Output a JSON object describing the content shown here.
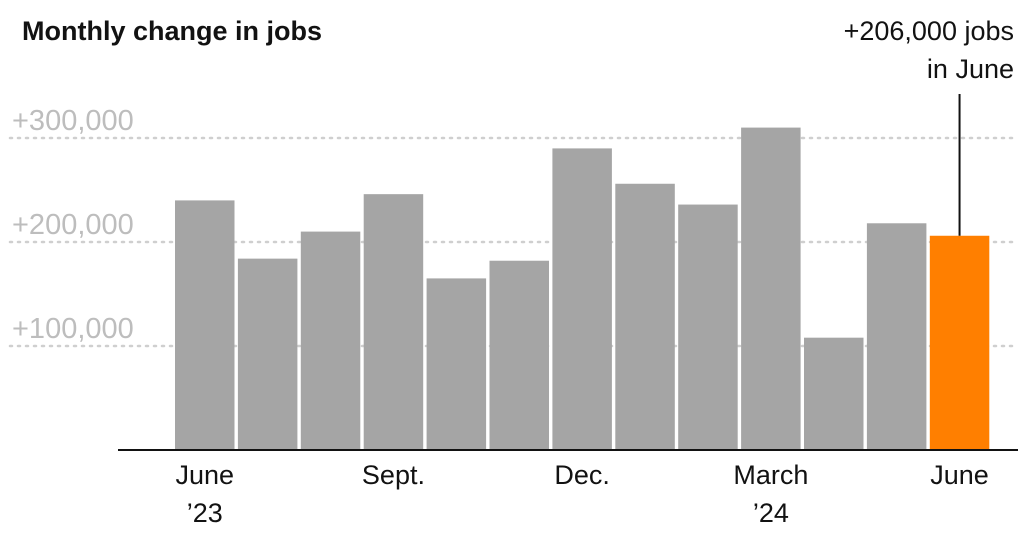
{
  "chart_data": {
    "type": "bar",
    "title": "Monthly change in jobs",
    "xlabel": "",
    "ylabel": "",
    "ylim": [
      0,
      330000
    ],
    "yticks": [
      {
        "value": 100000,
        "label": "+100,000"
      },
      {
        "value": 200000,
        "label": "+200,000"
      },
      {
        "value": 300000,
        "label": "+300,000"
      }
    ],
    "grid": true,
    "categories": [
      "Jun 2023",
      "Jul 2023",
      "Aug 2023",
      "Sep 2023",
      "Oct 2023",
      "Nov 2023",
      "Dec 2023",
      "Jan 2024",
      "Feb 2024",
      "Mar 2024",
      "Apr 2024",
      "May 2024",
      "Jun 2024"
    ],
    "values": [
      240000,
      184000,
      210000,
      246000,
      165000,
      182000,
      290000,
      256000,
      236000,
      310000,
      108000,
      218000,
      206000
    ],
    "highlight_index": 12,
    "colors": {
      "bar": "#a5a5a5",
      "highlight": "#ff7f00",
      "axis": "#121212",
      "grid": "#cfcfcf",
      "tick_label": "#bdbdbd"
    },
    "xtick_labels": [
      {
        "index": 0,
        "lines": [
          "June",
          "’23"
        ]
      },
      {
        "index": 3,
        "lines": [
          "Sept."
        ]
      },
      {
        "index": 6,
        "lines": [
          "Dec."
        ]
      },
      {
        "index": 9,
        "lines": [
          "March",
          "’24"
        ]
      },
      {
        "index": 12,
        "lines": [
          "June"
        ]
      }
    ],
    "annotation": {
      "index": 12,
      "lines": [
        "+206,000 jobs",
        "in June"
      ]
    }
  }
}
